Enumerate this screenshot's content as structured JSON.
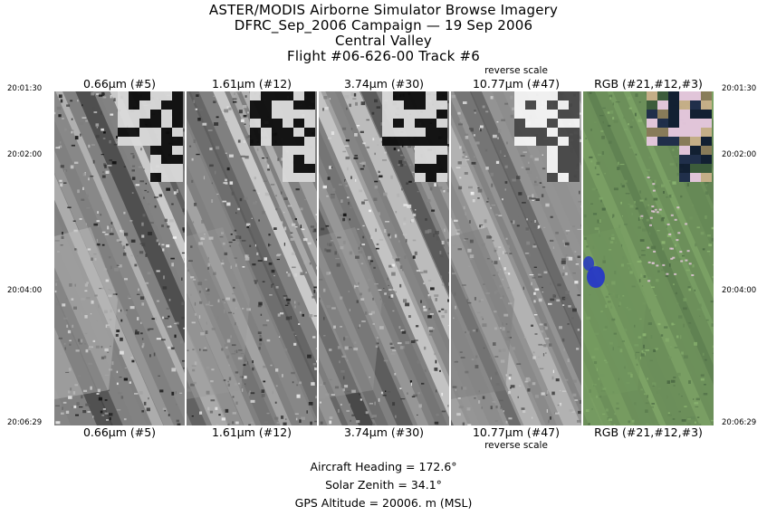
{
  "header": {
    "title_line1": "ASTER/MODIS Airborne Simulator Browse Imagery",
    "title_line2": "DFRC_Sep_2006 Campaign — 19 Sep 2006",
    "title_line3": "Central Valley",
    "title_line4": "Flight #06-626-00 Track #6"
  },
  "panels": [
    {
      "label": "0.66μm (#5)",
      "note": "",
      "kind": "gray",
      "inverted": false
    },
    {
      "label": "1.61μm (#12)",
      "note": "",
      "kind": "gray",
      "inverted": false
    },
    {
      "label": "3.74μm (#30)",
      "note": "",
      "kind": "gray",
      "inverted": false
    },
    {
      "label": "10.77μm (#47)",
      "note": "reverse scale",
      "kind": "gray",
      "inverted": true
    },
    {
      "label": "RGB (#21,#12,#3)",
      "note": "",
      "kind": "rgb",
      "inverted": false
    }
  ],
  "timestamps": {
    "t1": "20:01:30",
    "t2": "20:02:00",
    "t3": "20:04:00",
    "t4": "20:06:29"
  },
  "info": {
    "heading": "Aircraft Heading =  172.6°",
    "zenith": "Solar Zenith =   34.1°",
    "altitude": "GPS Altitude =  20006. m (MSL)"
  },
  "colors": {
    "rgb_vegetation": "#7fb36a",
    "rgb_water": "#2233cc",
    "rgb_bright": "#e8c8e0"
  }
}
